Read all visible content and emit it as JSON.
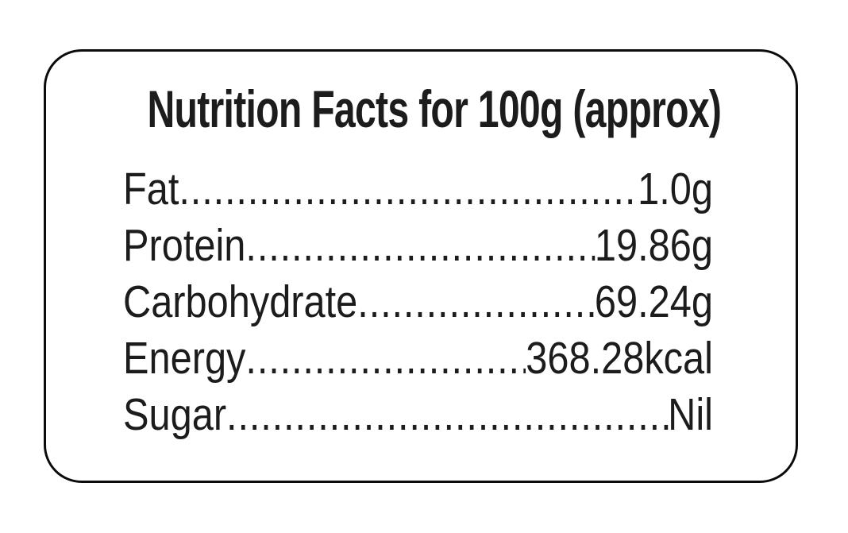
{
  "label": {
    "title": "Nutrition Facts for 100g (approx)",
    "rows": [
      {
        "name": "Fat",
        "value": "1.0g"
      },
      {
        "name": "Protein",
        "value": "19.86g"
      },
      {
        "name": "Carbohydrate",
        "value": "69.24g"
      },
      {
        "name": "Energy",
        "value": "368.28kcal"
      },
      {
        "name": "Sugar",
        "value": "Nil"
      }
    ],
    "leader_char": ".",
    "colors": {
      "text": "#1c1c1c",
      "border": "#0b0b0b",
      "label_background": "#ffffff",
      "page_background": "#ffffff"
    }
  }
}
